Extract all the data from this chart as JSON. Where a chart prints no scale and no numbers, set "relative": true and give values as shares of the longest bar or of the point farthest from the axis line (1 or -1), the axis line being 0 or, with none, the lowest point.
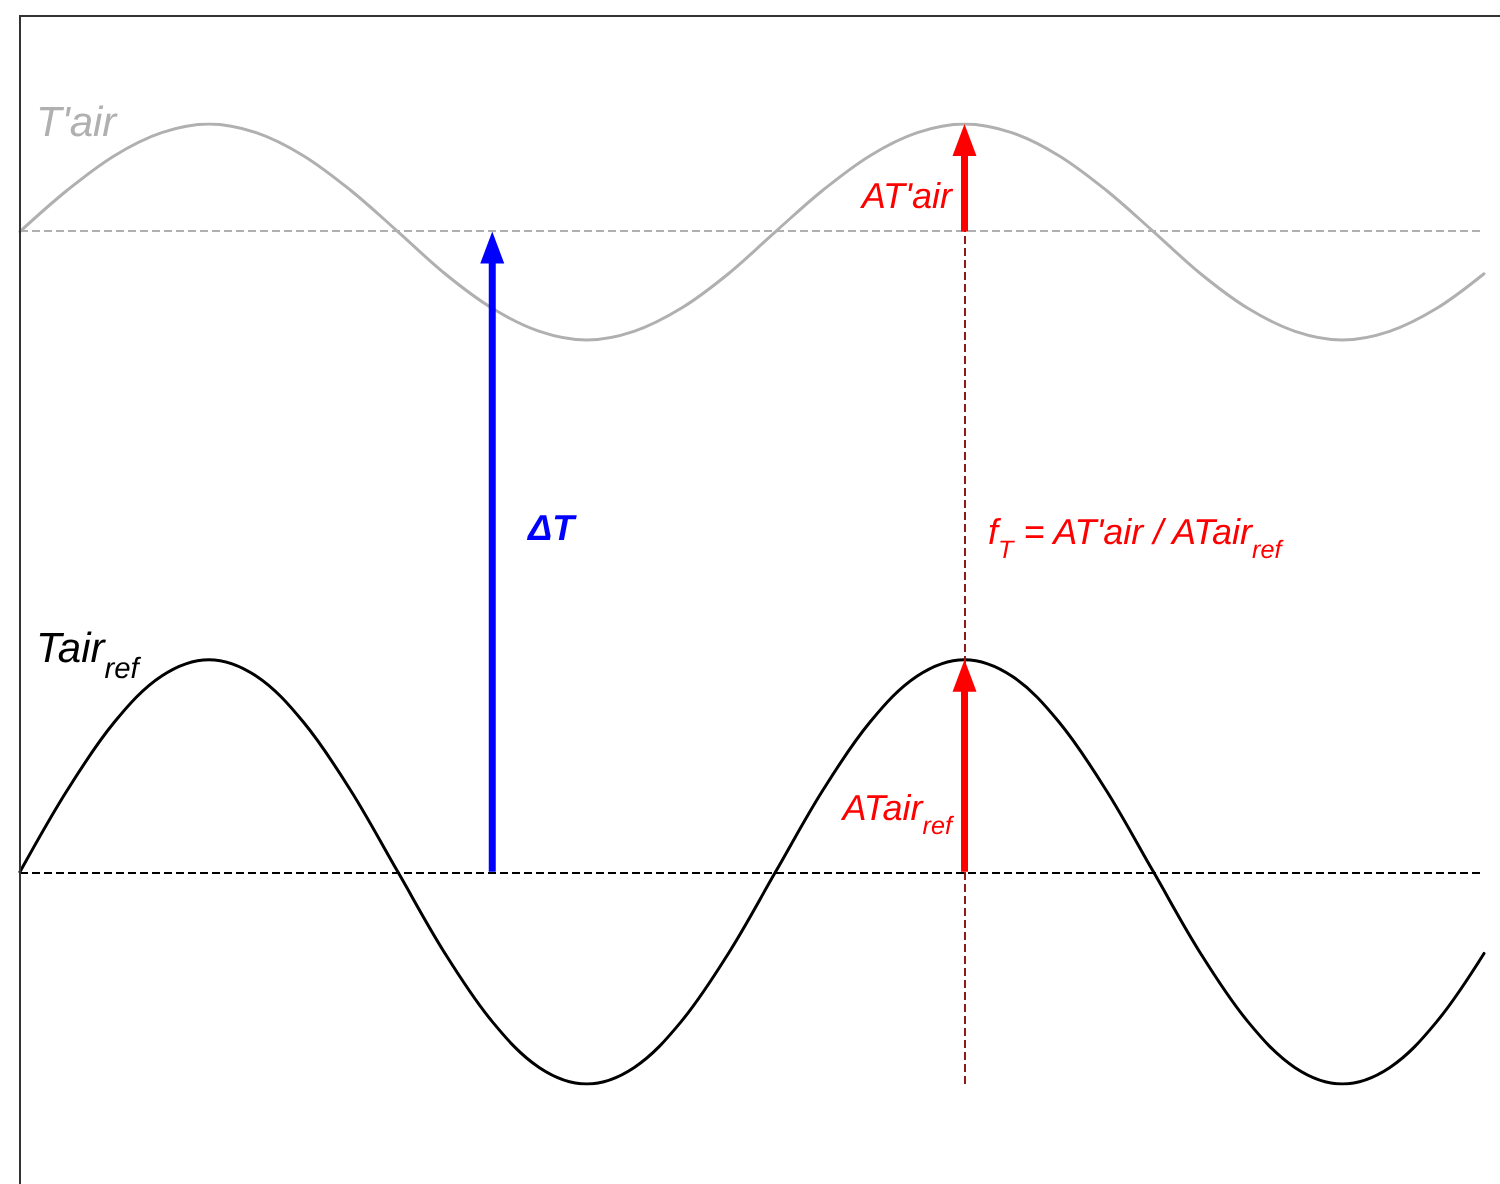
{
  "chart_data": {
    "type": "line",
    "relative": true,
    "legend": false,
    "grid": false,
    "marker": "none",
    "categories": [
      null,
      null,
      null,
      null,
      null,
      null,
      null,
      null,
      null,
      null,
      null,
      null,
      null,
      null,
      null,
      null,
      null,
      null,
      null,
      null,
      null,
      null,
      null,
      null,
      null,
      null,
      null,
      null,
      null,
      null,
      null,
      null
    ],
    "series": [
      {
        "name": "T'air",
        "color": "#b0b0b0",
        "values": [
          0.888,
          0.931,
          0.967,
          0.991,
          1,
          0.991,
          0.967,
          0.931,
          0.888,
          0.844,
          0.808,
          0.784,
          0.775,
          0.784,
          0.808,
          0.844,
          0.888,
          0.931,
          0.967,
          0.991,
          1,
          0.991,
          0.967,
          0.931,
          0.888,
          0.844,
          0.808,
          0.784,
          0.775,
          0.784,
          0.808,
          0.844
        ]
      },
      {
        "name": "Tair$_{ref}$",
        "color": "#000000",
        "values": [
          0.221,
          0.306,
          0.377,
          0.425,
          0.442,
          0.425,
          0.377,
          0.306,
          0.221,
          0.136,
          0.065,
          0.017,
          0,
          0.017,
          0.065,
          0.136,
          0.221,
          0.306,
          0.377,
          0.425,
          0.442,
          0.425,
          0.377,
          0.306,
          0.221,
          0.136,
          0.065,
          0.017,
          0,
          0.017,
          0.065,
          0.136
        ]
      }
    ],
    "ref_lines": [
      {
        "axis": "y",
        "value": 0.221,
        "color": "#000000",
        "line_style": "dashed"
      },
      {
        "axis": "y",
        "value": 0.888,
        "color": "#b0b0b0",
        "line_style": "dashed"
      }
    ],
    "annotations": [
      "AT'air",
      "ΔT",
      "f$_{T}$ = AT'air / ATair$_{ref}$",
      "ATair$_{ref}$"
    ]
  }
}
